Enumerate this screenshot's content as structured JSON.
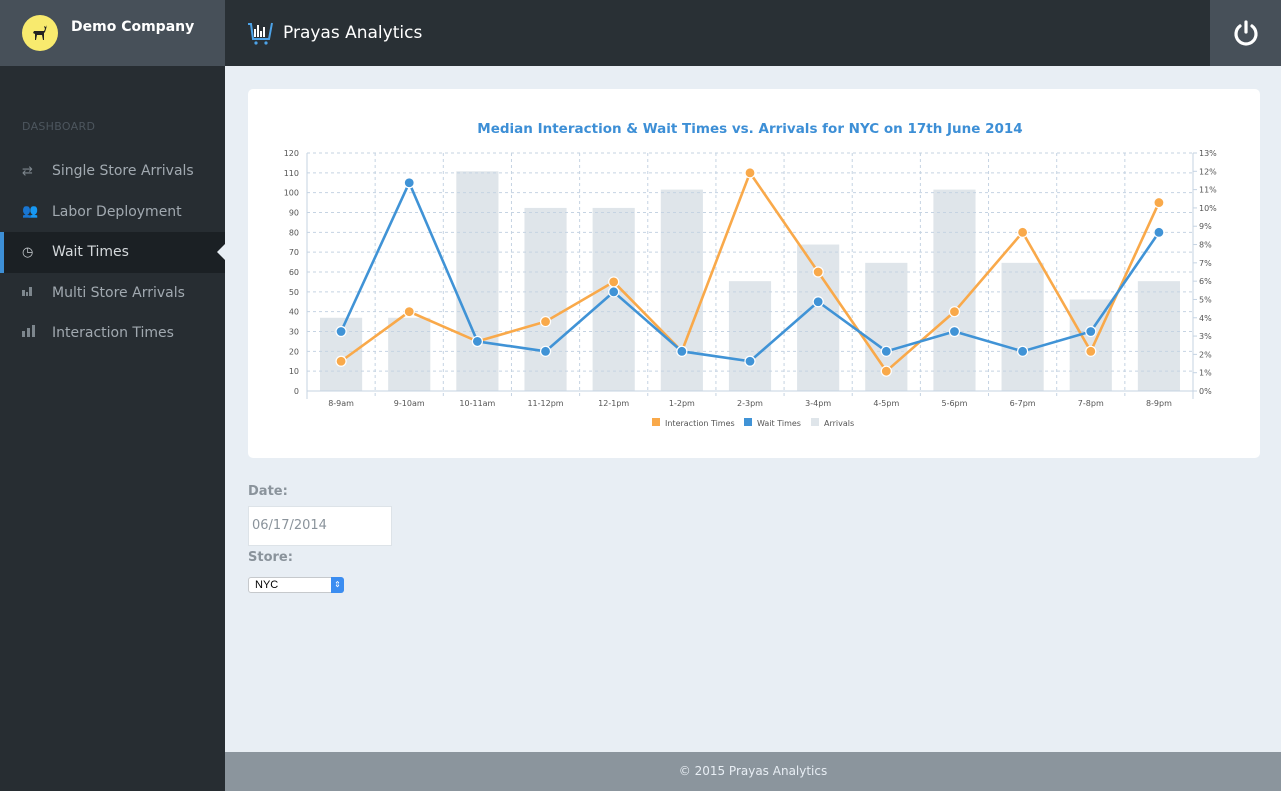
{
  "sidebar": {
    "company": "Demo Company",
    "section": "DASHBOARD",
    "items": [
      {
        "label": "Single Store Arrivals",
        "icon": "exchange-icon"
      },
      {
        "label": "Labor Deployment",
        "icon": "users-icon"
      },
      {
        "label": "Wait Times",
        "icon": "clock-icon",
        "active": true
      },
      {
        "label": "Multi Store Arrivals",
        "icon": "bar-chart-icon"
      },
      {
        "label": "Interaction Times",
        "icon": "signal-icon"
      }
    ]
  },
  "header": {
    "title": "Prayas Analytics"
  },
  "form": {
    "date_label": "Date:",
    "date_value": "06/17/2014",
    "store_label": "Store:",
    "store_value": "NYC"
  },
  "footer": {
    "text": "© 2015 Prayas Analytics"
  },
  "colors": {
    "interaction": "#f9a94a",
    "wait": "#4093d6",
    "arrivals": "#dfe5ea",
    "title": "#3d8fd6"
  },
  "chart_data": {
    "type": "bar+line",
    "title": "Median Interaction & Wait Times vs. Arrivals for NYC on 17th June 2014",
    "categories": [
      "8-9am",
      "9-10am",
      "10-11am",
      "11-12pm",
      "12-1pm",
      "1-2pm",
      "2-3pm",
      "3-4pm",
      "4-5pm",
      "5-6pm",
      "6-7pm",
      "7-8pm",
      "8-9pm"
    ],
    "y_left": {
      "range": [
        0,
        120
      ],
      "ticks": [
        "0",
        "10",
        "20",
        "30",
        "40",
        "50",
        "60",
        "70",
        "80",
        "90",
        "100",
        "110",
        "120"
      ]
    },
    "y_right": {
      "range": [
        0,
        13
      ],
      "ticks": [
        "0%",
        "1%",
        "2%",
        "3%",
        "4%",
        "5%",
        "6%",
        "7%",
        "8%",
        "9%",
        "10%",
        "11%",
        "12%",
        "13%"
      ]
    },
    "grid": true,
    "legend": "bottom",
    "series": [
      {
        "name": "Interaction Times",
        "type": "line",
        "axis": "left",
        "values": [
          15,
          40,
          25,
          35,
          55,
          20,
          110,
          60,
          10,
          40,
          80,
          20,
          95
        ]
      },
      {
        "name": "Wait Times",
        "type": "line",
        "axis": "left",
        "values": [
          30,
          105,
          25,
          20,
          50,
          20,
          15,
          45,
          20,
          30,
          20,
          30,
          80
        ]
      },
      {
        "name": "Arrivals",
        "type": "bar",
        "axis": "right",
        "values": [
          4,
          4,
          12,
          10,
          10,
          11,
          6,
          8,
          7,
          11,
          7,
          5,
          6
        ]
      }
    ]
  }
}
